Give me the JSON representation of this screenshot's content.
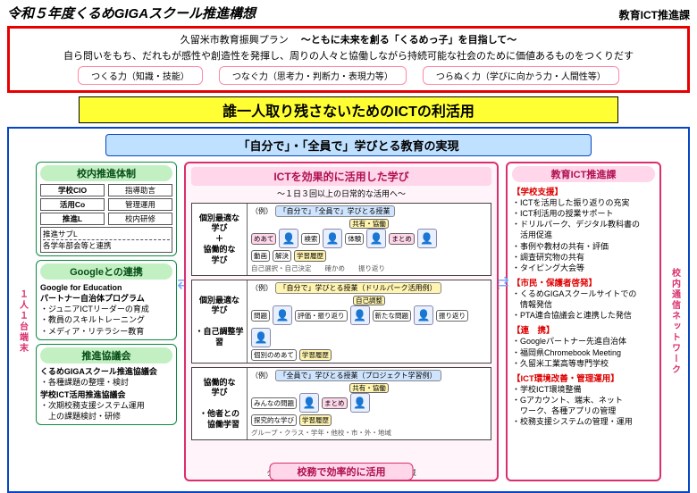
{
  "header": {
    "title": "令和５年度くるめGIGAスクール推進構想",
    "dept": "教育ICT推進課"
  },
  "plan": {
    "source": "久留米市教育振興プラン",
    "headline": "～ともに未来を創る「くるめっ子」を目指して～",
    "body": "自ら問いをもち、だれもが感性や創造性を発揮し、周りの人々と協働しながら持続可能な社会のために価値あるものをつくりだす",
    "pills": [
      "つくる力（知識・技能）",
      "つなぐ力（思考力・判断力・表現力等）",
      "つらぬく力（学びに向かう力・人間性等）"
    ]
  },
  "yellow": "誰一人取り残さないためのICTの利活用",
  "blueband": "「自分で」・「全員で」学びとる教育の実現",
  "vleft": "１人１台端末",
  "vright": "校内通信ネットワーク",
  "left": {
    "org": {
      "title": "校内推進体制",
      "grid": [
        "学校CIO",
        "指導助言",
        "活用Co",
        "管理運用",
        "推進L",
        "校内研修"
      ],
      "sub_bold": "推進サブL",
      "sub": "各学年部会等と連携"
    },
    "google": {
      "title": "Googleとの連携",
      "lead": "Google for Education\nパートナー自治体プログラム",
      "items": [
        "・ジュニアICTリーダーの育成",
        "・教員のスキルトレーニング",
        "・メディア・リテラシー教育"
      ]
    },
    "council": {
      "title": "推進協議会",
      "a_bold": "くるめGIGAスクール推進協議会",
      "a_items": [
        "・各種課題の整理・検討"
      ],
      "b_bold": "学校ICT活用推進協議会",
      "b_items": [
        "・次期校務支援システム運用",
        "　上の課題検討・研修"
      ]
    }
  },
  "center": {
    "title": "ICTを効果的に活用した学び",
    "sub": "〜１日３回以上の日常的な活用へ〜",
    "lessons": [
      {
        "left": "個別最適な\n学び\n＋\n協働的な\n学び",
        "badge": "（例）",
        "label": "「自分で」「全員で」学びとる授業",
        "label_cls": "blue",
        "top_tag": "共有・協働",
        "tags": [
          "めあて",
          "検索",
          "体験",
          "まとめ"
        ],
        "tags2": [
          "動画",
          "解決",
          "学習履歴"
        ],
        "foot": [
          "自己選択・自己決定",
          "確かめ",
          "振り返り"
        ]
      },
      {
        "left": "個別最適な\n学び\n\n・自己調整学習",
        "badge": "（例）",
        "label": "「自分で」学びとる授業（ドリルパーク活用例）",
        "label_cls": "yel",
        "top_tag": "自己調整",
        "tags": [
          "問題",
          "評価・振り返り",
          "新たな問題",
          "振り返り"
        ],
        "tags2": [
          "個別のめあて",
          "学習履歴"
        ],
        "foot": []
      },
      {
        "left": "協働的な\n学び\n\n・他者との\n　協働学習",
        "badge": "（例）",
        "label": "「全員で」学びとる授業（プロジェクト学習例）",
        "label_cls": "blue",
        "top_tag": "共有・協働",
        "tags": [
          "みんなの問題",
          "まとめ"
        ],
        "tags2": [
          "探究的な学び",
          "学習履歴"
        ],
        "foot": [
          "グループ・クラス・学年・他校・市・外・地域"
        ]
      }
    ],
    "footer_band": "校務で効率的に活用"
  },
  "right": {
    "title": "教育ICT推進課",
    "sections": [
      {
        "label": "【学校支援】",
        "items": [
          "・ICTを活用した振り返りの充実",
          "・ICT利活用の授業サポート",
          "・ドリルパーク、デジタル教科書の",
          "　活用促進",
          "・事例や教材の共有・評価",
          "・調査研究物の共有",
          "・タイピング大会等"
        ]
      },
      {
        "label": "【市民・保護者啓発】",
        "items": [
          "・くるめGIGAスクールサイトでの",
          "　情報発信",
          "・PTA連合協議会と連携した発信"
        ]
      },
      {
        "label": "【連　携】",
        "items": [
          "・Googleパートナー先進自治体",
          "・福岡県Chromebook Meeting",
          "・久留米工業高等専門学校"
        ]
      },
      {
        "label": "【ICT環境改善・管理運用】",
        "items": [
          "・学校ICT環境整備",
          "・Gアカウント、端末、ネット",
          "　ワーク、各種アプリの管理",
          "・校務支援システムの管理・運用"
        ]
      }
    ]
  }
}
